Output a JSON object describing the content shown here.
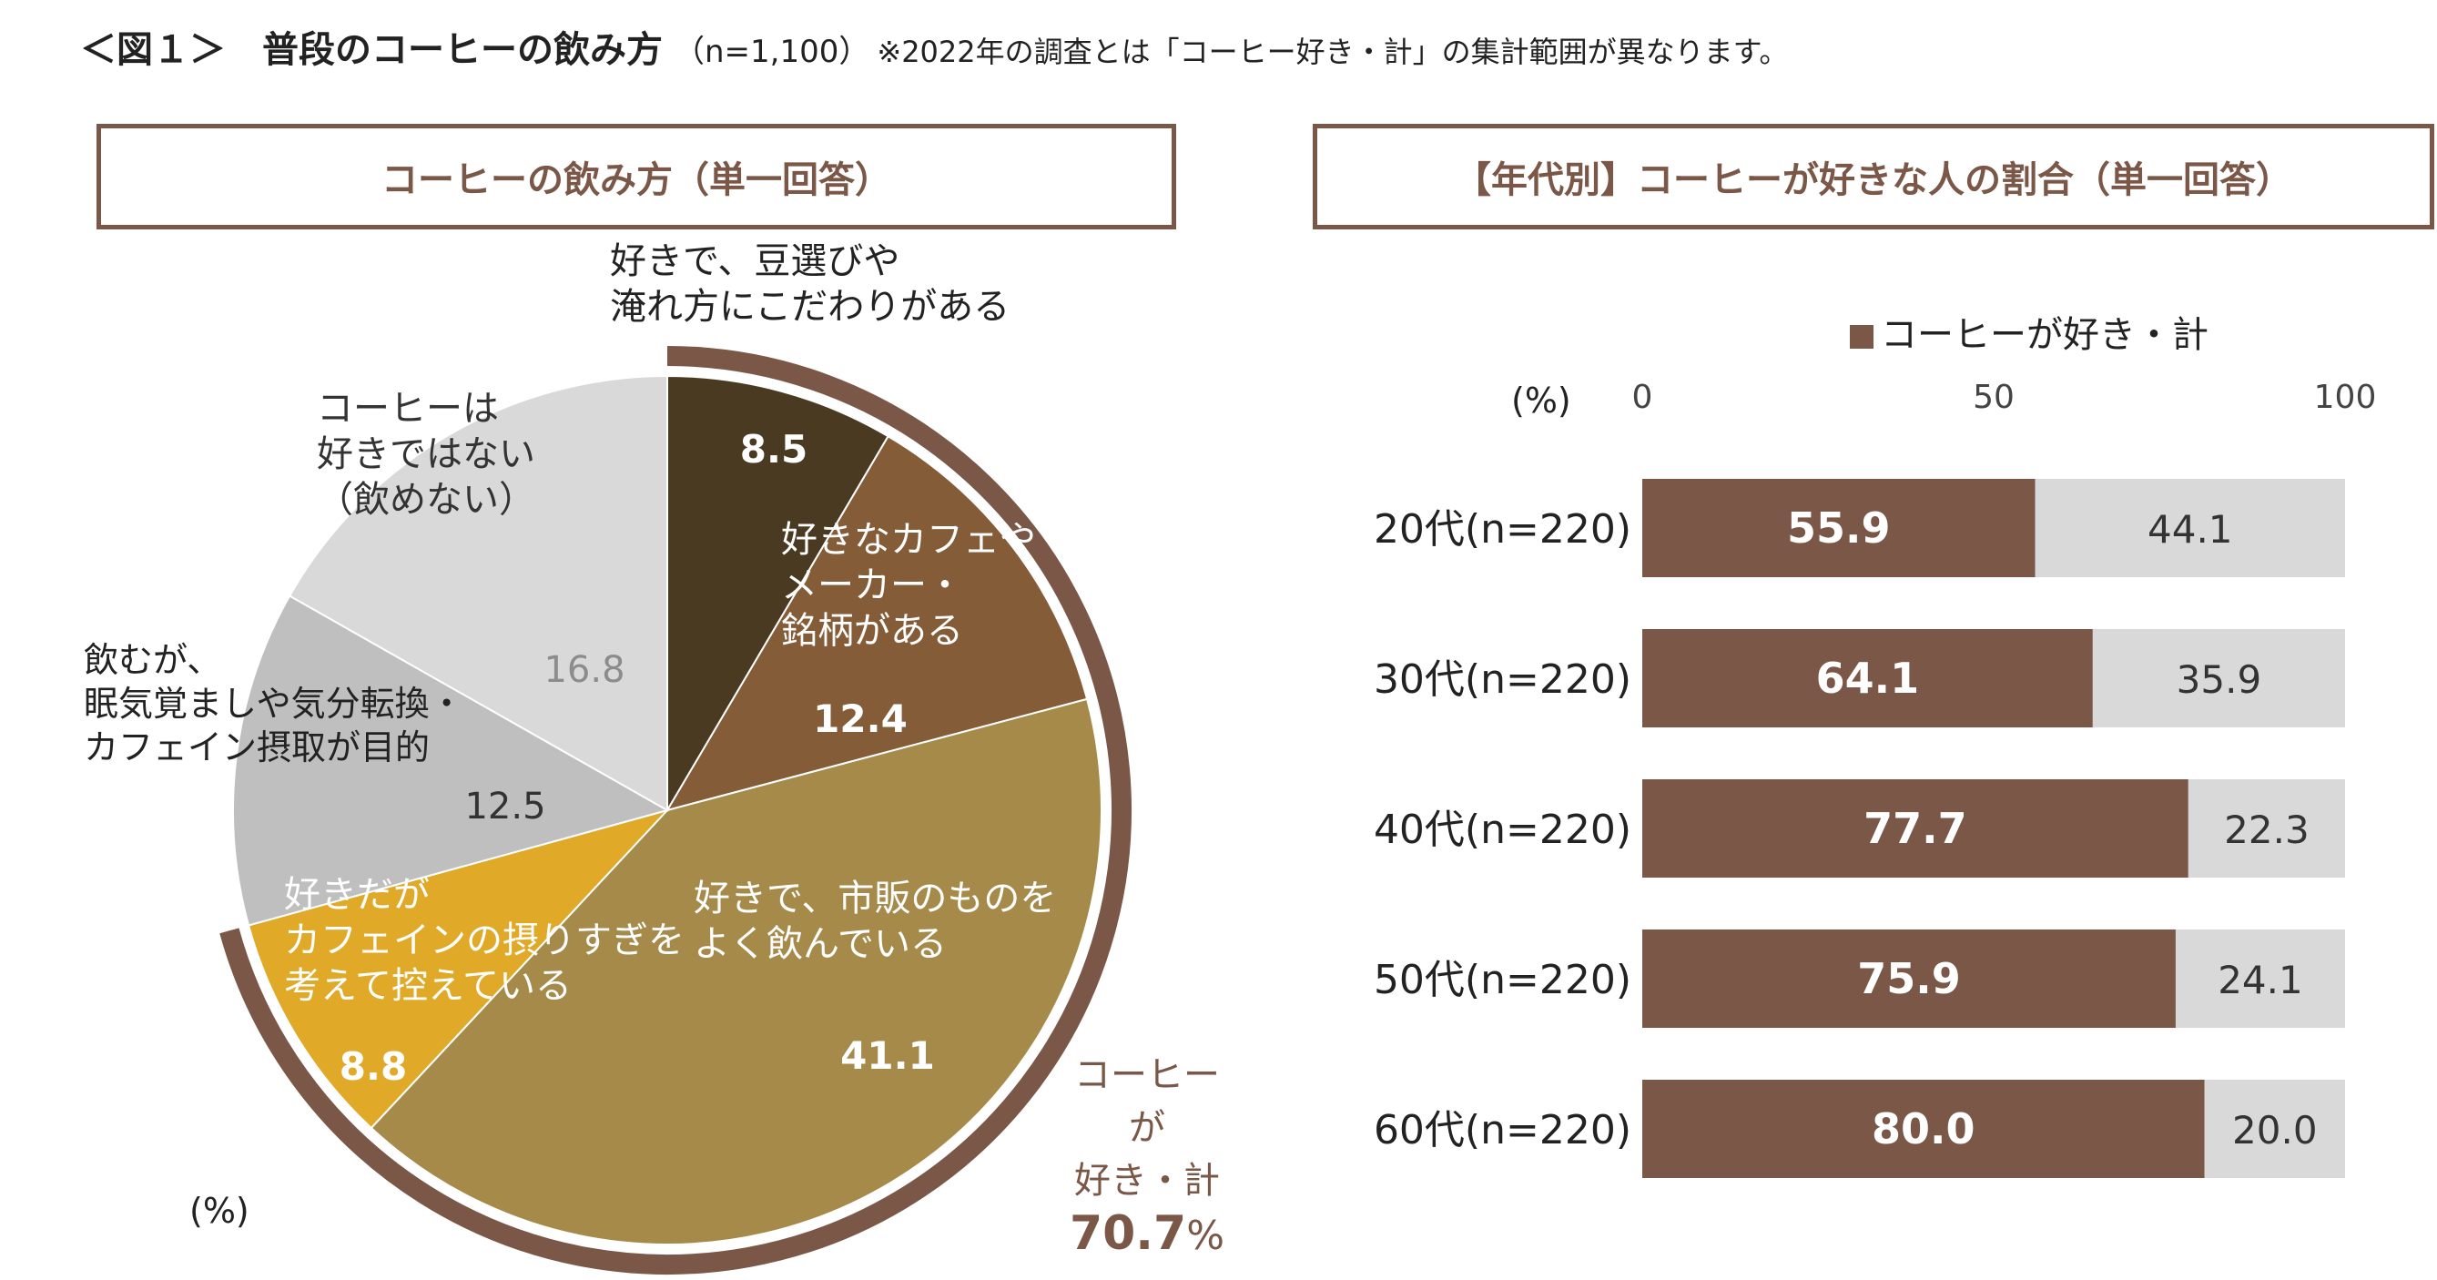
{
  "header": {
    "title": "＜図１＞　普段のコーヒーの飲み方",
    "n": "（n=1,100）",
    "note": "※2022年の調査とは「コーヒー好き・計」の集計範囲が異なります。"
  },
  "left_panel": {
    "title": "コーヒーの飲み方（単一回答）",
    "unit": "(%)"
  },
  "right_panel": {
    "title": "【年代別】コーヒーが好きな人の割合（単一回答）",
    "unit": "(%)"
  },
  "total": {
    "label_line1": "コーヒーが",
    "label_line2": "好き・計",
    "value": "70.7",
    "suffix": "%"
  },
  "colors": {
    "brown": "#7a5747",
    "gray": "#d9d9d9"
  },
  "chart_data": [
    {
      "type": "pie",
      "title": "コーヒーの飲み方（単一回答）",
      "unit": "%",
      "slices": [
        {
          "label": [
            "好きで、豆選びや",
            "淹れ方にこだわりがある"
          ],
          "value": 8.5,
          "color": "#4b3a22"
        },
        {
          "label": [
            "好きなカフェや",
            "メーカー・",
            "銘柄がある"
          ],
          "value": 12.4,
          "color": "#855c38"
        },
        {
          "label": [
            "好きで、市販のものを",
            "よく飲んでいる"
          ],
          "value": 41.1,
          "color": "#a68a4a"
        },
        {
          "label": [
            "好きだが",
            "カフェインの摂りすぎを",
            "考えて控えている"
          ],
          "value": 8.8,
          "color": "#e0a928"
        },
        {
          "label": [
            "飲むが、",
            "眠気覚ましや気分転換・",
            "カフェイン摂取が目的"
          ],
          "value": 12.5,
          "color": "#bfbfbf"
        },
        {
          "label": [
            "コーヒーは",
            "好きではない",
            "（飲めない）"
          ],
          "value": 16.8,
          "color": "#d9d9d9"
        }
      ]
    },
    {
      "type": "bar",
      "orientation": "horizontal",
      "stacked": true,
      "title": "【年代別】コーヒーが好きな人の割合（単一回答）",
      "categories": [
        "20代(n=220)",
        "30代(n=220)",
        "40代(n=220)",
        "50代(n=220)",
        "60代(n=220)"
      ],
      "series": [
        {
          "name": "コーヒーが好き・計",
          "values": [
            55.9,
            64.1,
            77.7,
            75.9,
            80.0
          ],
          "color": "#7a5747"
        },
        {
          "values": [
            44.1,
            35.9,
            22.3,
            24.1,
            20.0
          ],
          "color": "#d9d9d9"
        }
      ],
      "xlim": [
        0,
        100
      ],
      "xticks": [
        "0",
        "50",
        "100"
      ],
      "legend": "top"
    }
  ]
}
